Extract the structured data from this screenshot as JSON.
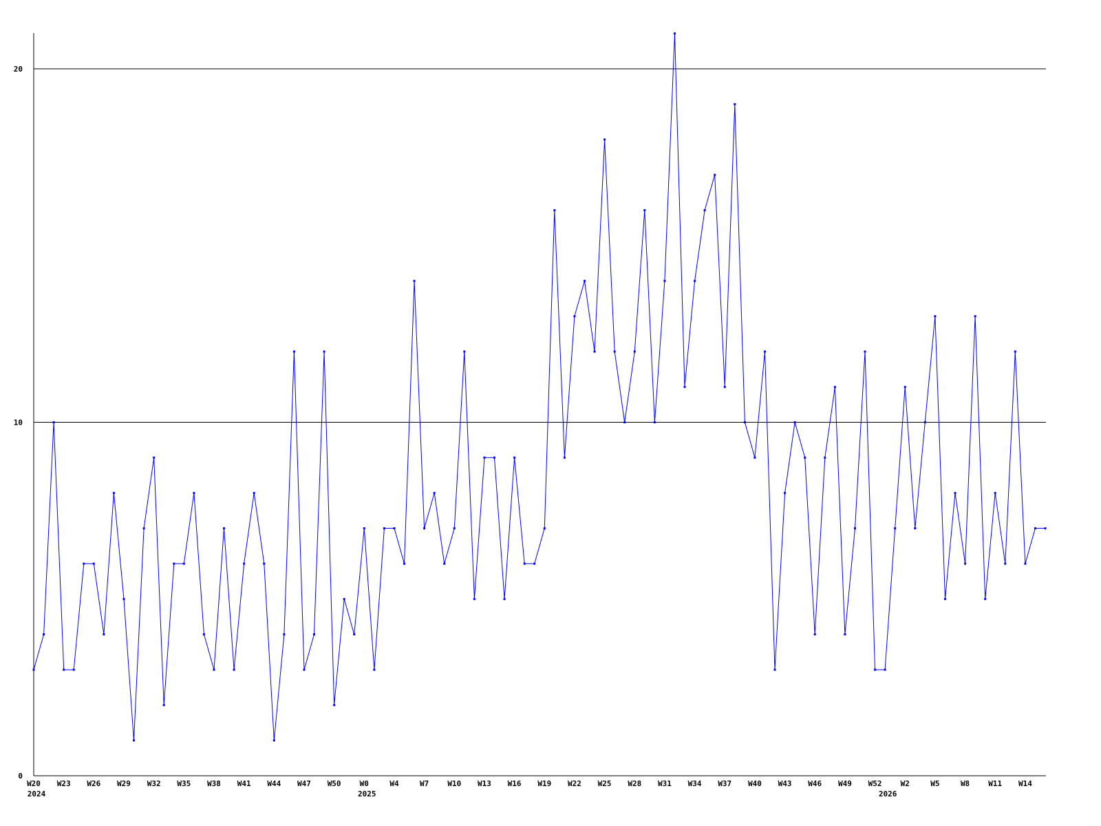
{
  "chart_data": {
    "type": "line",
    "title": "",
    "xlabel": "",
    "ylabel": "",
    "ylim": [
      0,
      21
    ],
    "yticks": [
      0,
      10,
      20
    ],
    "grid": "horizontal lines at y ticks",
    "series_color": "#0000ff",
    "x_tick_labels": [
      {
        "index": 0,
        "label": "W20"
      },
      {
        "index": 3,
        "label": "W23"
      },
      {
        "index": 6,
        "label": "W26"
      },
      {
        "index": 9,
        "label": "W29"
      },
      {
        "index": 12,
        "label": "W32"
      },
      {
        "index": 15,
        "label": "W35"
      },
      {
        "index": 18,
        "label": "W38"
      },
      {
        "index": 21,
        "label": "W41"
      },
      {
        "index": 24,
        "label": "W44"
      },
      {
        "index": 27,
        "label": "W47"
      },
      {
        "index": 30,
        "label": "W50"
      },
      {
        "index": 33,
        "label": "W0"
      },
      {
        "index": 36,
        "label": "W4"
      },
      {
        "index": 39,
        "label": "W7"
      },
      {
        "index": 42,
        "label": "W10"
      },
      {
        "index": 45,
        "label": "W13"
      },
      {
        "index": 48,
        "label": "W16"
      },
      {
        "index": 51,
        "label": "W19"
      },
      {
        "index": 54,
        "label": "W22"
      },
      {
        "index": 57,
        "label": "W25"
      },
      {
        "index": 60,
        "label": "W28"
      },
      {
        "index": 63,
        "label": "W31"
      },
      {
        "index": 66,
        "label": "W34"
      },
      {
        "index": 69,
        "label": "W37"
      },
      {
        "index": 72,
        "label": "W40"
      },
      {
        "index": 75,
        "label": "W43"
      },
      {
        "index": 78,
        "label": "W46"
      },
      {
        "index": 81,
        "label": "W49"
      },
      {
        "index": 84,
        "label": "W52"
      },
      {
        "index": 87,
        "label": "W2"
      },
      {
        "index": 90,
        "label": "W5"
      },
      {
        "index": 93,
        "label": "W8"
      },
      {
        "index": 96,
        "label": "W11"
      },
      {
        "index": 99,
        "label": "W14"
      }
    ],
    "year_labels": [
      {
        "index": 0,
        "label": "2024"
      },
      {
        "index": 33,
        "label": "2025"
      },
      {
        "index": 85,
        "label": "2026"
      }
    ],
    "values": [
      3,
      4,
      10,
      3,
      3,
      6,
      6,
      4,
      8,
      5,
      1,
      7,
      9,
      2,
      6,
      6,
      8,
      4,
      3,
      7,
      3,
      6,
      8,
      6,
      1,
      4,
      12,
      3,
      4,
      12,
      2,
      5,
      4,
      7,
      3,
      7,
      7,
      6,
      14,
      7,
      8,
      6,
      7,
      12,
      5,
      9,
      9,
      5,
      9,
      6,
      6,
      7,
      16,
      9,
      13,
      14,
      12,
      18,
      12,
      10,
      12,
      16,
      10,
      14,
      21,
      11,
      14,
      16,
      17,
      11,
      19,
      10,
      9,
      12,
      3,
      8,
      10,
      9,
      4,
      9,
      11,
      4,
      7,
      12,
      3,
      3,
      7,
      11,
      7,
      10,
      13,
      5,
      8,
      6,
      13,
      5,
      8,
      6,
      12,
      6,
      7,
      7
    ]
  }
}
